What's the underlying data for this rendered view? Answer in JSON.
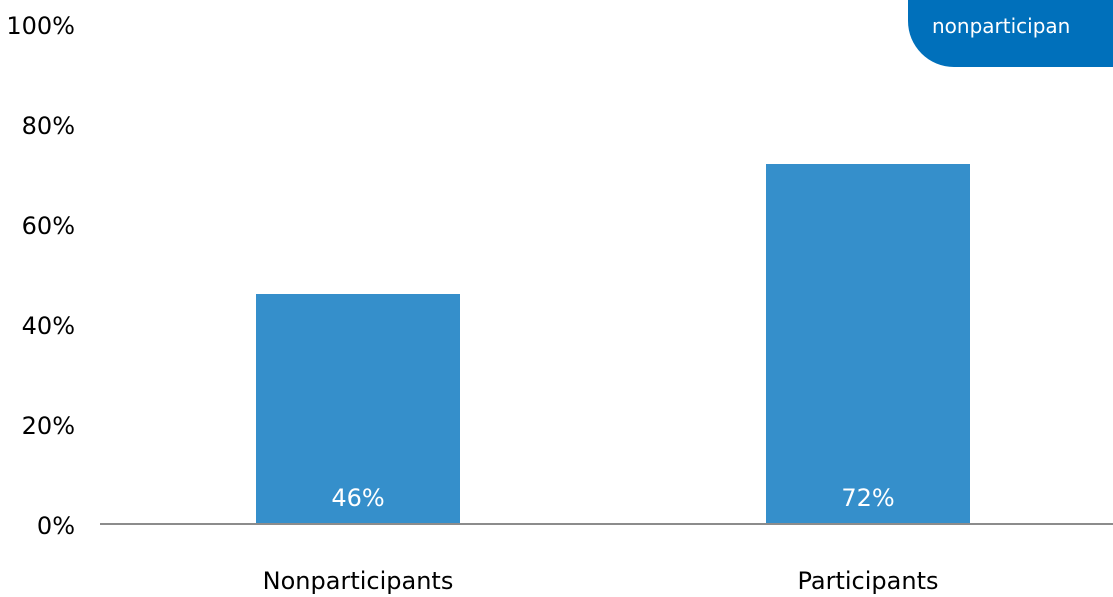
{
  "chart_data": {
    "type": "bar",
    "categories": [
      "Nonparticipants",
      "Participants"
    ],
    "values": [
      46,
      72
    ],
    "value_labels": [
      "46%",
      "72%"
    ],
    "ylim": [
      0,
      100
    ],
    "yticks": [
      0,
      20,
      40,
      60,
      80,
      100
    ],
    "ytick_labels": [
      "0%",
      "20%",
      "40%",
      "60%",
      "80%",
      "100%"
    ],
    "title": "",
    "xlabel": "",
    "ylabel": "",
    "grid": false,
    "legend": false,
    "bar_color": "#358fcb",
    "axis_color": "#8c8c8c",
    "text_color": "#000000",
    "data_label_color": "#ffffff"
  },
  "callout": {
    "text": "nonparticipan",
    "color": "#0070bb"
  }
}
